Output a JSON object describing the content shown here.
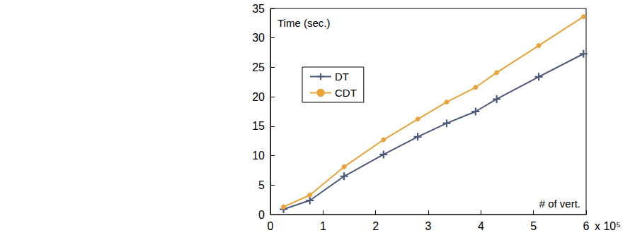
{
  "chart_data": {
    "type": "line",
    "x_label": "# of vert.",
    "y_label": "Time (sec.)",
    "annotations": [
      "x 10⁵"
    ],
    "xlim": [
      0,
      6
    ],
    "xticks": [
      0,
      1,
      2,
      3,
      4,
      5,
      6
    ],
    "ylim": [
      0,
      35
    ],
    "yticks": [
      0,
      5,
      10,
      15,
      20,
      25,
      30,
      35
    ],
    "grid": false,
    "legend": "upper left",
    "series": [
      {
        "name": "DT",
        "color": "#4b5878",
        "marker": "plus",
        "line_style": "solid",
        "x": [
          0.25,
          0.75,
          1.4,
          2.15,
          2.8,
          3.35,
          3.9,
          4.3,
          5.1,
          5.95
        ],
        "values": [
          0.9,
          2.4,
          6.5,
          10.2,
          13.2,
          15.5,
          17.5,
          19.6,
          23.4,
          27.3
        ]
      },
      {
        "name": "CDT",
        "color": "#e8a33a",
        "marker": "circle",
        "line_style": "solid",
        "x": [
          0.25,
          0.75,
          1.4,
          2.15,
          2.8,
          3.35,
          3.9,
          4.3,
          5.1,
          5.95
        ],
        "values": [
          1.3,
          3.3,
          8.1,
          12.7,
          16.2,
          19.1,
          21.6,
          24.1,
          28.7,
          33.6
        ]
      }
    ]
  }
}
